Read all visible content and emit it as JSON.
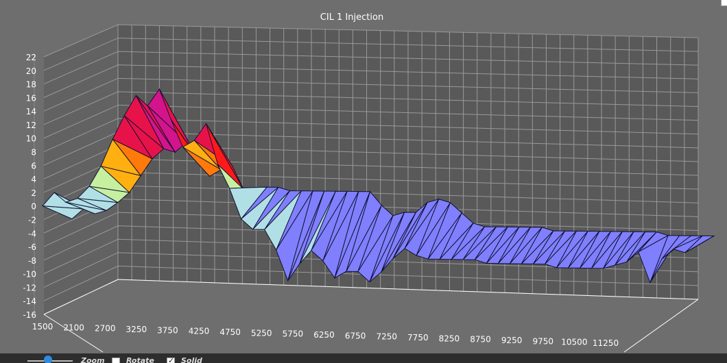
{
  "chart_data": {
    "type": "surface",
    "title": "CIL 1 Injection",
    "y_ticks": [
      "22",
      "20",
      "18",
      "16",
      "14",
      "12",
      "10",
      "8",
      "6",
      "4",
      "2",
      "0",
      "-2",
      "-4",
      "-6",
      "-8",
      "-10",
      "-12",
      "-14",
      "-16"
    ],
    "y_range": [
      -16,
      22
    ],
    "x_ticks": [
      "1500",
      "2100",
      "2700",
      "3250",
      "3750",
      "4250",
      "4750",
      "5250",
      "5750",
      "6250",
      "6750",
      "7250",
      "7750",
      "8250",
      "8750",
      "9250",
      "9750",
      "10500",
      "11250"
    ],
    "front_values": [
      0.0,
      2.0,
      0.6,
      1.2,
      3.0,
      6.0,
      10.0,
      13.5,
      16.5,
      15.0,
      17.5,
      13.0,
      9.0,
      10.0,
      12.5,
      6.5,
      3.0,
      -1.5,
      -3.0,
      -3.0,
      -6.0,
      -10.5,
      -8.0,
      -6.0,
      -7.5,
      -10.0,
      -9.0,
      -9.0,
      -10.5,
      -9.0,
      -7.0,
      -5.5,
      -6.5,
      -7.0,
      -7.0,
      -7.0,
      -7.0,
      -7.0,
      -7.5,
      -7.5,
      -7.5,
      -7.5,
      -7.5,
      -7.5,
      -8.0,
      -8.0,
      -8.0,
      -8.0,
      -8.0,
      -7.5,
      -7.0,
      -5.5,
      -10.0,
      -6.5,
      -5.0,
      -5.5,
      -4.5
    ],
    "back_values": [
      -0.5,
      1.0,
      0.3,
      0.8,
      2.0,
      3.5,
      6.0,
      8.5,
      10.0,
      9.5,
      11.0,
      8.5,
      6.0,
      7.0,
      7.5,
      4.0,
      2.5,
      4.5,
      4.5,
      4.0,
      4.0,
      4.0,
      4.0,
      4.0,
      4.0,
      4.0,
      4.0,
      2.0,
      0.5,
      1.0,
      1.0,
      2.5,
      3.0,
      2.5,
      1.0,
      -0.5,
      -1.0,
      -1.0,
      -1.0,
      -1.0,
      -1.0,
      -1.0,
      -1.5,
      -1.5,
      -1.5,
      -1.5,
      -1.5,
      -1.5,
      -1.5,
      -1.5,
      -1.5,
      -1.5,
      -2.0,
      -2.0,
      -2.0,
      -2.0,
      -2.0
    ],
    "colors": {
      "background": "#6e6e6e",
      "back_wall": "#595959",
      "grid": "#9a9a9a",
      "axis_text": "#ffffff",
      "surface_low": "#8080ff",
      "surface_mid": "#b0e0e6",
      "surface_high": "#ff1a1a",
      "surface_peak": "#d4148c"
    }
  },
  "controls": {
    "zoom_label": "Zoom",
    "rotate_label": "Rotate",
    "solid_label": "Solid",
    "rotate_checked": false,
    "solid_checked": true
  }
}
